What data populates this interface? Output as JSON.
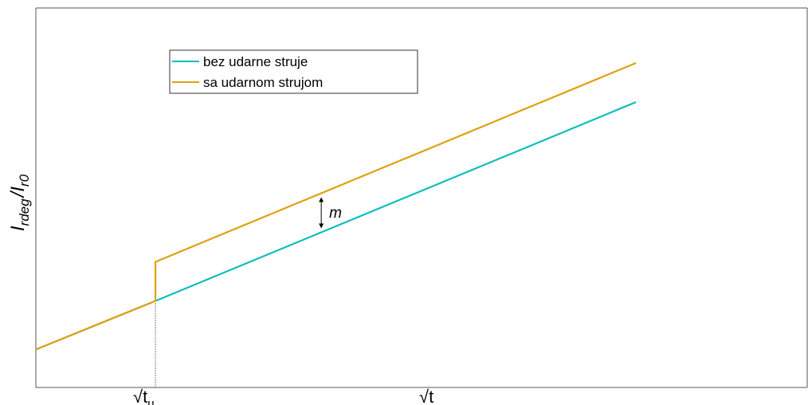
{
  "chart_data": {
    "type": "line",
    "title": "",
    "xlabel": "√t",
    "ylabel": {
      "main": "I",
      "sub": "rdeg",
      "sep": "/I",
      "sub2": "r0"
    },
    "xlim": [
      0,
      1
    ],
    "ylim": [
      0,
      1
    ],
    "grid": false,
    "legend_position": "top-left",
    "x_ticks": [
      {
        "x": 0.155,
        "label_main": "√t",
        "label_sub": "u"
      }
    ],
    "annotation": {
      "text": "m",
      "x": 0.37
    },
    "series": [
      {
        "name": "bez udarne struje",
        "color": "#13bdbd",
        "x": [
          0,
          0.155,
          0.778
        ],
        "y": [
          0.1,
          0.228,
          0.752
        ]
      },
      {
        "name": "sa udarnom strujom",
        "color": "#e0a010",
        "x": [
          0,
          0.155,
          0.155,
          0.778
        ],
        "y": [
          0.1,
          0.228,
          0.331,
          0.855
        ]
      }
    ]
  }
}
